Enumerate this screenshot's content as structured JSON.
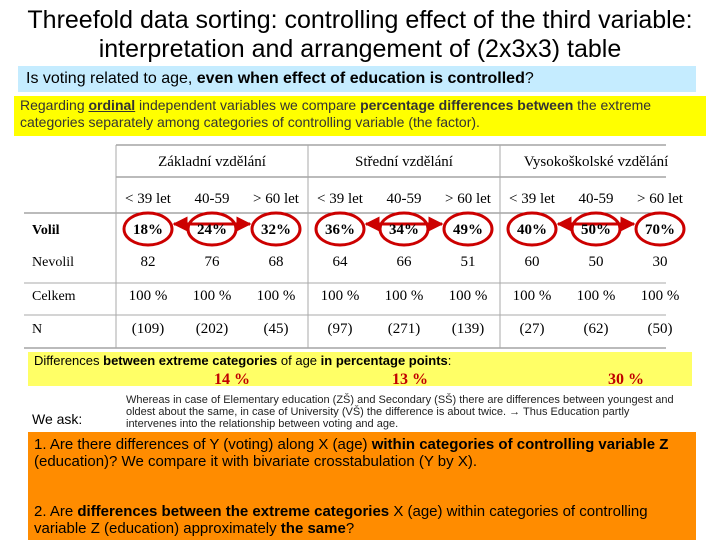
{
  "title": "Threefold data sorting: controlling effect of the third variable: interpretation and arrangement of (2x3x3) table",
  "question": {
    "prefix": "Is voting related to age, ",
    "bold": "even when effect of education is controlled",
    "suffix": "?"
  },
  "regarding": {
    "t1": "Regarding ",
    "t2": "ordinal",
    "t3": " independent variables we compare ",
    "t4": "percentage differences between",
    "t5": " the extreme categories separately among categories of controlling variable (the factor)."
  },
  "table": {
    "groups": [
      "Základní vzdělání",
      "Střední vzdělání",
      "Vysokoškolské vzdělání"
    ],
    "age_cols": [
      "< 39 let",
      "40-59",
      "> 60 let",
      "< 39 let",
      "40-59",
      "> 60 let",
      "< 39 let",
      "40-59",
      "> 60 let"
    ],
    "rows": [
      {
        "label": "Volil",
        "values": [
          "18%",
          "24%",
          "32%",
          "36%",
          "34%",
          "49%",
          "40%",
          "50%",
          "70%"
        ]
      },
      {
        "label": "Nevolil",
        "values": [
          "82",
          "76",
          "68",
          "64",
          "66",
          "51",
          "60",
          "50",
          "30"
        ]
      },
      {
        "label": "Celkem",
        "values": [
          "100 %",
          "100 %",
          "100 %",
          "100 %",
          "100 %",
          "100 %",
          "100 %",
          "100 %",
          "100 %"
        ]
      },
      {
        "label": "N",
        "values": [
          "(109)",
          "(202)",
          "(45)",
          "(97)",
          "(271)",
          "(139)",
          "(27)",
          "(62)",
          "(50)"
        ]
      }
    ]
  },
  "differences": {
    "t1": "Differences ",
    "t2": "between extreme categories",
    "t3": " of age ",
    "t4": "in percentage points",
    "t5": ":",
    "values": [
      "14 %",
      "13 %",
      "30 %"
    ]
  },
  "we_ask": "We ask:",
  "whereas": "Whereas in case of  Elementary education (ZŠ) and Secondary (SŠ) there are differences between youngest and oldest about the same, in case of University (VŠ) the difference is about twice.  → Thus Education partly intervenes into the relationship between voting and age.",
  "q1": {
    "t1": "1. Are there differences of Y (voting) along X (age) ",
    "t2": "within categories of controlling variable Z",
    "t3": " (education)? We compare it with bivariate crosstabulation (Y by X)."
  },
  "q2": {
    "t1": "2. Are ",
    "t2": "differences between the extreme categories",
    "t3": " X (age) within categories of controlling variable Z (education) approximately ",
    "t4": "the same",
    "t5": "?"
  },
  "colors": {
    "question_bg": "#c5ecff",
    "highlight_yellow": "#ffff00",
    "band_yellow": "#ffff66",
    "orange": "#ff8c00",
    "arrow_red": "#cc0000",
    "pct_red": "#c00000"
  }
}
